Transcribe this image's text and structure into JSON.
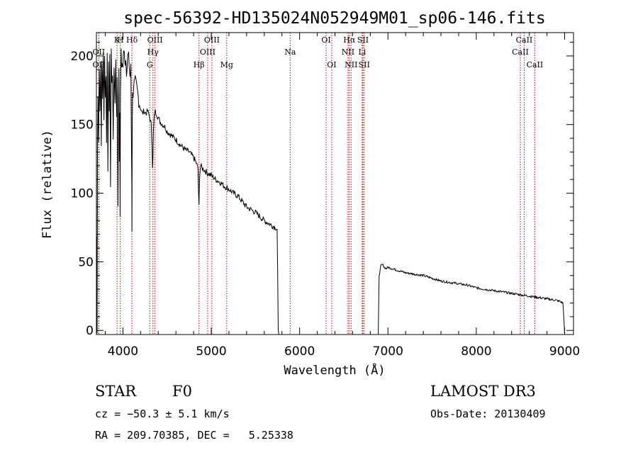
{
  "chart_data": {
    "type": "line",
    "title": "spec-56392-HD135024N052949M01_sp06-146.fits",
    "xlabel": "Wavelength (Å)",
    "ylabel": "Flux (relative)",
    "xlim": [
      3700,
      9100
    ],
    "ylim": [
      -3,
      217
    ],
    "xticks": [
      4000,
      5000,
      6000,
      7000,
      8000,
      9000
    ],
    "yticks": [
      0,
      50,
      100,
      150,
      200
    ],
    "grid": false,
    "series": [
      {
        "name": "flux",
        "x": [
          3700,
          3705,
          3708,
          3712,
          3718,
          3725,
          3732,
          3740,
          3748,
          3755,
          3762,
          3770,
          3778,
          3785,
          3792,
          3800,
          3808,
          3815,
          3822,
          3830,
          3838,
          3845,
          3852,
          3860,
          3868,
          3875,
          3882,
          3890,
          3900,
          3910,
          3920,
          3930,
          3935,
          3940,
          3945,
          3950,
          3955,
          3960,
          3965,
          3968,
          3972,
          3980,
          3990,
          4000,
          4010,
          4020,
          4030,
          4040,
          4050,
          4060,
          4070,
          4080,
          4090,
          4095,
          4100,
          4102,
          4105,
          4110,
          4120,
          4140,
          4160,
          4180,
          4200,
          4220,
          4240,
          4260,
          4280,
          4300,
          4320,
          4330,
          4335,
          4340,
          4345,
          4350,
          4360,
          4380,
          4400,
          4420,
          4450,
          4480,
          4500,
          4550,
          4600,
          4650,
          4700,
          4750,
          4800,
          4830,
          4850,
          4856,
          4861,
          4866,
          4870,
          4880,
          4900,
          4920,
          4950,
          5000,
          5050,
          5100,
          5150,
          5200,
          5250,
          5300,
          5350,
          5400,
          5450,
          5500,
          5550,
          5600,
          5650,
          5700,
          5730,
          5745,
          5752,
          5758,
          5765,
          5800,
          5900,
          6000,
          6200,
          6400,
          6600,
          6800,
          6860,
          6870,
          6880,
          6890,
          6900,
          6920,
          6940,
          6950,
          6960,
          6980,
          7000,
          7100,
          7200,
          7300,
          7400,
          7500,
          7600,
          7700,
          7800,
          7900,
          8000,
          8100,
          8200,
          8300,
          8400,
          8500,
          8600,
          8700,
          8800,
          8900,
          8950,
          8980,
          8990,
          9000
        ],
        "y": [
          0,
          68,
          -2,
          130,
          175,
          140,
          190,
          160,
          200,
          130,
          195,
          170,
          205,
          150,
          198,
          175,
          185,
          140,
          200,
          120,
          195,
          160,
          205,
          110,
          200,
          175,
          190,
          140,
          195,
          165,
          200,
          150,
          185,
          130,
          90,
          170,
          195,
          120,
          160,
          85,
          175,
          200,
          190,
          195,
          205,
          195,
          200,
          190,
          197,
          200,
          195,
          185,
          190,
          150,
          110,
          75,
          150,
          170,
          178,
          180,
          175,
          168,
          162,
          158,
          160,
          158,
          160,
          156,
          150,
          135,
          120,
          125,
          145,
          150,
          160,
          158,
          155,
          152,
          150,
          148,
          145,
          142,
          139,
          135,
          132,
          130,
          126,
          122,
          118,
          100,
          90,
          105,
          115,
          120,
          118,
          117,
          115,
          113,
          110,
          108,
          105,
          103,
          100,
          98,
          94,
          90,
          88,
          86,
          83,
          80,
          78,
          76,
          75,
          73,
          40,
          0,
          -3,
          -3,
          -3,
          -3,
          -3,
          -3,
          -3,
          -3,
          -3,
          -3,
          -3,
          -3,
          40,
          47,
          48,
          47,
          46,
          45,
          46,
          44,
          42,
          41,
          40,
          38,
          36,
          35,
          34,
          33,
          31,
          30,
          29,
          28,
          27,
          26,
          25,
          24,
          23,
          22,
          21,
          20,
          10,
          -3
        ]
      }
    ],
    "line_markers": [
      {
        "label": "Hδ",
        "x": 4102,
        "row": 0
      },
      {
        "label": "OIII",
        "x": 4363,
        "row": 0
      },
      {
        "label": "OIII",
        "x": 5007,
        "row": 0
      },
      {
        "label": "OI",
        "x": 6300,
        "row": 0
      },
      {
        "label": "Hα",
        "x": 6563,
        "row": 0
      },
      {
        "label": "SII",
        "x": 6717,
        "row": 0
      },
      {
        "label": "CaII",
        "x": 8542,
        "row": 0
      },
      {
        "label": "Hγ",
        "x": 4340,
        "row": 1
      },
      {
        "label": "OIII",
        "x": 4959,
        "row": 1
      },
      {
        "label": "Na",
        "x": 5893,
        "row": 1
      },
      {
        "label": "NII",
        "x": 6548,
        "row": 1
      },
      {
        "label": "Li",
        "x": 6708,
        "row": 1
      },
      {
        "label": "CaII",
        "x": 8498,
        "row": 1
      },
      {
        "label": "G",
        "x": 4304,
        "row": 2
      },
      {
        "label": "Hβ",
        "x": 4861,
        "row": 2
      },
      {
        "label": "Mg",
        "x": 5175,
        "row": 2
      },
      {
        "label": "OI",
        "x": 6363,
        "row": 2
      },
      {
        "label": "NII",
        "x": 6583,
        "row": 2
      },
      {
        "label": "SII",
        "x": 6731,
        "row": 2
      },
      {
        "label": "CaII",
        "x": 8662,
        "row": 2
      },
      {
        "label": "H",
        "x": 3970,
        "row": 0
      },
      {
        "label": "K",
        "x": 3934,
        "row": 0
      },
      {
        "label": "OII",
        "x": 3727,
        "row": 1
      },
      {
        "label": "OII",
        "x": 3727,
        "row": 2
      }
    ]
  },
  "info": {
    "class": "STAR",
    "subclass": "F0",
    "survey": "LAMOST DR3",
    "cz": "cz = −50.3 ± 5.1 km/s",
    "obs_date": "Obs-Date: 20130409",
    "radec": "RA = 209.70385, DEC =   5.25338"
  }
}
